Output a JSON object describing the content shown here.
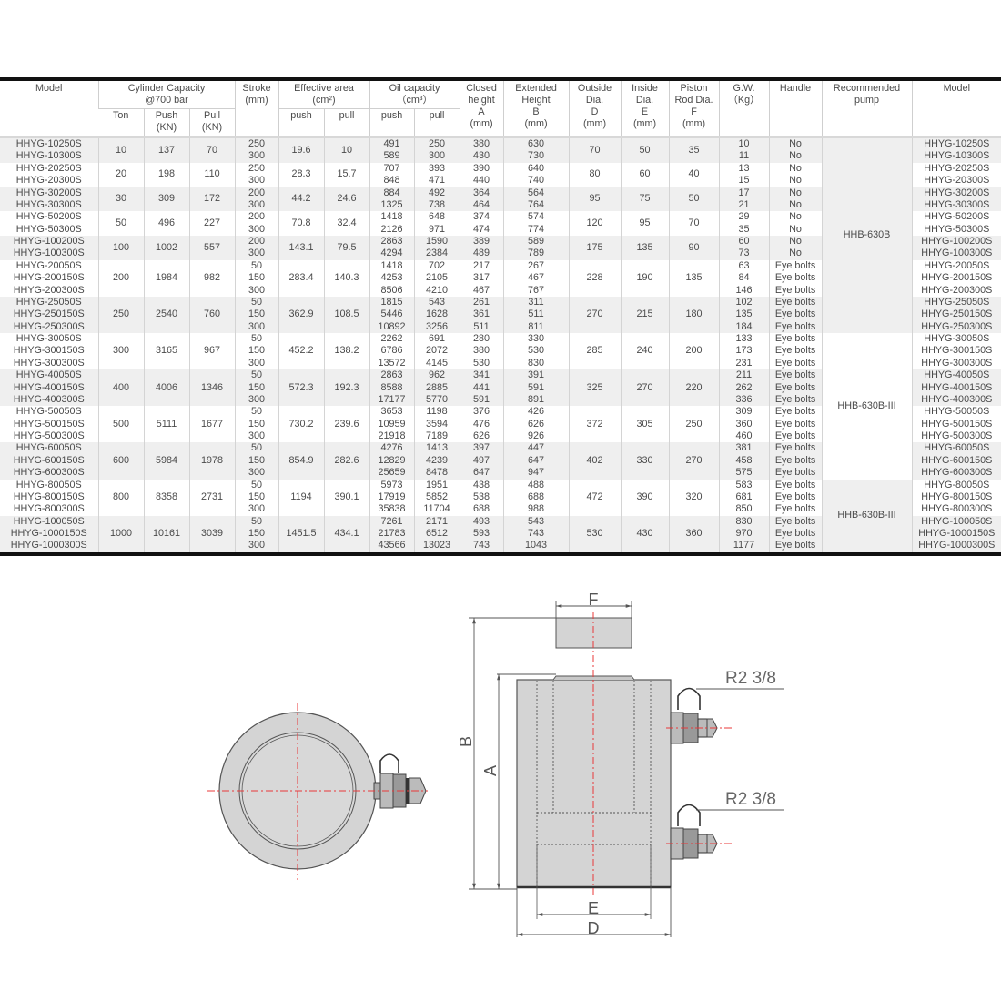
{
  "table": {
    "headers": {
      "model": "Model",
      "cylinder_capacity": "Cylinder Capacity\n@700 bar",
      "ton": "Ton",
      "push_kn": "Push\n(KN)",
      "pull_kn": "Pull\n(KN)",
      "stroke": "Stroke\n(mm)",
      "effective_area": "Effective area\n(cm²)",
      "eff_push": "push",
      "eff_pull": "pull",
      "oil_capacity": "Oil capacity\n（cm³）",
      "oil_push": "push",
      "oil_pull": "pull",
      "closed_height": "Closed\nheight\nA\n(mm)",
      "extended_height": "Extended\nHeight\nB\n(mm)",
      "outside_dia": "Outside\nDia.\nD\n(mm)",
      "inside_dia": "Inside\nDia.\nE\n(mm)",
      "piston_rod_dia": "Piston\nRod Dia.\nF\n(mm)",
      "gw": "G.W.\n（Kg）",
      "handle": "Handle",
      "recommended_pump": "Recommended\npump",
      "model_right": "Model"
    },
    "groups": [
      {
        "models": [
          "HHYG-10250S",
          "HHYG-10300S"
        ],
        "ton": "10",
        "push": "137",
        "pull": "70",
        "strokes": [
          "250",
          "300"
        ],
        "eff_push": "19.6",
        "eff_pull": "10",
        "oil_push": [
          "491",
          "589"
        ],
        "oil_pull": [
          "250",
          "300"
        ],
        "A": [
          "380",
          "430"
        ],
        "B": [
          "630",
          "730"
        ],
        "D": "70",
        "E": "50",
        "F": "35",
        "gw": [
          "10",
          "11"
        ],
        "handle": [
          "No",
          "No"
        ]
      },
      {
        "models": [
          "HHYG-20250S",
          "HHYG-20300S"
        ],
        "ton": "20",
        "push": "198",
        "pull": "110",
        "strokes": [
          "250",
          "300"
        ],
        "eff_push": "28.3",
        "eff_pull": "15.7",
        "oil_push": [
          "707",
          "848"
        ],
        "oil_pull": [
          "393",
          "471"
        ],
        "A": [
          "390",
          "440"
        ],
        "B": [
          "640",
          "740"
        ],
        "D": "80",
        "E": "60",
        "F": "40",
        "gw": [
          "13",
          "15"
        ],
        "handle": [
          "No",
          "No"
        ]
      },
      {
        "models": [
          "HHYG-30200S",
          "HHYG-30300S"
        ],
        "ton": "30",
        "push": "309",
        "pull": "172",
        "strokes": [
          "200",
          "300"
        ],
        "eff_push": "44.2",
        "eff_pull": "24.6",
        "oil_push": [
          "884",
          "1325"
        ],
        "oil_pull": [
          "492",
          "738"
        ],
        "A": [
          "364",
          "464"
        ],
        "B": [
          "564",
          "764"
        ],
        "D": "95",
        "E": "75",
        "F": "50",
        "gw": [
          "17",
          "21"
        ],
        "handle": [
          "No",
          "No"
        ]
      },
      {
        "models": [
          "HHYG-50200S",
          "HHYG-50300S"
        ],
        "ton": "50",
        "push": "496",
        "pull": "227",
        "strokes": [
          "200",
          "300"
        ],
        "eff_push": "70.8",
        "eff_pull": "32.4",
        "oil_push": [
          "1418",
          "2126"
        ],
        "oil_pull": [
          "648",
          "971"
        ],
        "A": [
          "374",
          "474"
        ],
        "B": [
          "574",
          "774"
        ],
        "D": "120",
        "E": "95",
        "F": "70",
        "gw": [
          "29",
          "35"
        ],
        "handle": [
          "No",
          "No"
        ]
      },
      {
        "models": [
          "HHYG-100200S",
          "HHYG-100300S"
        ],
        "ton": "100",
        "push": "1002",
        "pull": "557",
        "strokes": [
          "200",
          "300"
        ],
        "eff_push": "143.1",
        "eff_pull": "79.5",
        "oil_push": [
          "2863",
          "4294"
        ],
        "oil_pull": [
          "1590",
          "2384"
        ],
        "A": [
          "389",
          "489"
        ],
        "B": [
          "589",
          "789"
        ],
        "D": "175",
        "E": "135",
        "F": "90",
        "gw": [
          "60",
          "73"
        ],
        "handle": [
          "No",
          "No"
        ]
      },
      {
        "models": [
          "HHYG-20050S",
          "HHYG-200150S",
          "HHYG-200300S"
        ],
        "ton": "200",
        "push": "1984",
        "pull": "982",
        "strokes": [
          "50",
          "150",
          "300"
        ],
        "eff_push": "283.4",
        "eff_pull": "140.3",
        "oil_push": [
          "1418",
          "4253",
          "8506"
        ],
        "oil_pull": [
          "702",
          "2105",
          "4210"
        ],
        "A": [
          "217",
          "317",
          "467"
        ],
        "B": [
          "267",
          "467",
          "767"
        ],
        "D": "228",
        "E": "190",
        "F": "135",
        "gw": [
          "63",
          "84",
          "146"
        ],
        "handle": [
          "Eye bolts",
          "Eye bolts",
          "Eye bolts"
        ]
      },
      {
        "models": [
          "HHYG-25050S",
          "HHYG-250150S",
          "HHYG-250300S"
        ],
        "ton": "250",
        "push": "2540",
        "pull": "760",
        "strokes": [
          "50",
          "150",
          "300"
        ],
        "eff_push": "362.9",
        "eff_pull": "108.5",
        "oil_push": [
          "1815",
          "5446",
          "10892"
        ],
        "oil_pull": [
          "543",
          "1628",
          "3256"
        ],
        "A": [
          "261",
          "361",
          "511"
        ],
        "B": [
          "311",
          "511",
          "811"
        ],
        "D": "270",
        "E": "215",
        "F": "180",
        "gw": [
          "102",
          "135",
          "184"
        ],
        "handle": [
          "Eye bolts",
          "Eye bolts",
          "Eye bolts"
        ]
      },
      {
        "models": [
          "HHYG-30050S",
          "HHYG-300150S",
          "HHYG-300300S"
        ],
        "ton": "300",
        "push": "3165",
        "pull": "967",
        "strokes": [
          "50",
          "150",
          "300"
        ],
        "eff_push": "452.2",
        "eff_pull": "138.2",
        "oil_push": [
          "2262",
          "6786",
          "13572"
        ],
        "oil_pull": [
          "691",
          "2072",
          "4145"
        ],
        "A": [
          "280",
          "380",
          "530"
        ],
        "B": [
          "330",
          "530",
          "830"
        ],
        "D": "285",
        "E": "240",
        "F": "200",
        "gw": [
          "133",
          "173",
          "231"
        ],
        "handle": [
          "Eye bolts",
          "Eye bolts",
          "Eye bolts"
        ]
      },
      {
        "models": [
          "HHYG-40050S",
          "HHYG-400150S",
          "HHYG-400300S"
        ],
        "ton": "400",
        "push": "4006",
        "pull": "1346",
        "strokes": [
          "50",
          "150",
          "300"
        ],
        "eff_push": "572.3",
        "eff_pull": "192.3",
        "oil_push": [
          "2863",
          "8588",
          "17177"
        ],
        "oil_pull": [
          "962",
          "2885",
          "5770"
        ],
        "A": [
          "341",
          "441",
          "591"
        ],
        "B": [
          "391",
          "591",
          "891"
        ],
        "D": "325",
        "E": "270",
        "F": "220",
        "gw": [
          "211",
          "262",
          "336"
        ],
        "handle": [
          "Eye bolts",
          "Eye bolts",
          "Eye bolts"
        ]
      },
      {
        "models": [
          "HHYG-50050S",
          "HHYG-500150S",
          "HHYG-500300S"
        ],
        "ton": "500",
        "push": "5111",
        "pull": "1677",
        "strokes": [
          "50",
          "150",
          "300"
        ],
        "eff_push": "730.2",
        "eff_pull": "239.6",
        "oil_push": [
          "3653",
          "10959",
          "21918"
        ],
        "oil_pull": [
          "1198",
          "3594",
          "7189"
        ],
        "A": [
          "376",
          "476",
          "626"
        ],
        "B": [
          "426",
          "626",
          "926"
        ],
        "D": "372",
        "E": "305",
        "F": "250",
        "gw": [
          "309",
          "360",
          "460"
        ],
        "handle": [
          "Eye bolts",
          "Eye bolts",
          "Eye bolts"
        ]
      },
      {
        "models": [
          "HHYG-60050S",
          "HHYG-600150S",
          "HHYG-600300S"
        ],
        "ton": "600",
        "push": "5984",
        "pull": "1978",
        "strokes": [
          "50",
          "150",
          "300"
        ],
        "eff_push": "854.9",
        "eff_pull": "282.6",
        "oil_push": [
          "4276",
          "12829",
          "25659"
        ],
        "oil_pull": [
          "1413",
          "4239",
          "8478"
        ],
        "A": [
          "397",
          "497",
          "647"
        ],
        "B": [
          "447",
          "647",
          "947"
        ],
        "D": "402",
        "E": "330",
        "F": "270",
        "gw": [
          "381",
          "458",
          "575"
        ],
        "handle": [
          "Eye bolts",
          "Eye bolts",
          "Eye bolts"
        ]
      },
      {
        "models": [
          "HHYG-80050S",
          "HHYG-800150S",
          "HHYG-800300S"
        ],
        "ton": "800",
        "push": "8358",
        "pull": "2731",
        "strokes": [
          "50",
          "150",
          "300"
        ],
        "eff_push": "1194",
        "eff_pull": "390.1",
        "oil_push": [
          "5973",
          "17919",
          "35838"
        ],
        "oil_pull": [
          "1951",
          "5852",
          "11704"
        ],
        "A": [
          "438",
          "538",
          "688"
        ],
        "B": [
          "488",
          "688",
          "988"
        ],
        "D": "472",
        "E": "390",
        "F": "320",
        "gw": [
          "583",
          "681",
          "850"
        ],
        "handle": [
          "Eye bolts",
          "Eye bolts",
          "Eye bolts"
        ]
      },
      {
        "models": [
          "HHYG-100050S",
          "HHYG-1000150S",
          "HHYG-1000300S"
        ],
        "ton": "1000",
        "push": "10161",
        "pull": "3039",
        "strokes": [
          "50",
          "150",
          "300"
        ],
        "eff_push": "1451.5",
        "eff_pull": "434.1",
        "oil_push": [
          "7261",
          "21783",
          "43566"
        ],
        "oil_pull": [
          "2171",
          "6512",
          "13023"
        ],
        "A": [
          "493",
          "593",
          "743"
        ],
        "B": [
          "543",
          "743",
          "1043"
        ],
        "D": "530",
        "E": "430",
        "F": "360",
        "gw": [
          "830",
          "970",
          "1177"
        ],
        "handle": [
          "Eye bolts",
          "Eye bolts",
          "Eye bolts"
        ]
      }
    ],
    "pumps": [
      "HHB-630B",
      "HHB-630B-III",
      "HHB-630B-III"
    ]
  },
  "diagram": {
    "label_F": "F",
    "label_B": "B",
    "label_A": "A",
    "label_E": "E",
    "label_D": "D",
    "port_upper": "R2 3/8",
    "port_lower": "R2 3/8"
  },
  "colors": {
    "body": "#d4d4d4",
    "centerline": "#e8393a",
    "line": "#555555"
  }
}
